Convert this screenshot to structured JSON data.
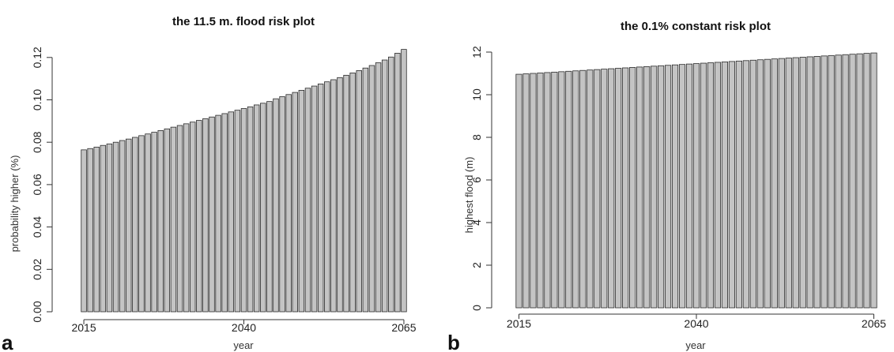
{
  "chart_data": [
    {
      "type": "bar",
      "panel": "a",
      "title": "the 11.5 m. flood risk plot",
      "xlabel": "year",
      "ylabel": "probability higher (%)",
      "x_start": 2015,
      "x_end": 2065,
      "x_ticks": [
        "2015",
        "2040",
        "2065"
      ],
      "y_ticks": [
        "0.00",
        "0.02",
        "0.04",
        "0.06",
        "0.08",
        "0.10",
        "0.12"
      ],
      "ylim": [
        0,
        0.127
      ],
      "grid": false,
      "values": [
        0.0764,
        0.077,
        0.0777,
        0.0785,
        0.0792,
        0.08,
        0.0808,
        0.0815,
        0.0823,
        0.0831,
        0.0839,
        0.0847,
        0.0855,
        0.0863,
        0.0871,
        0.0879,
        0.0887,
        0.0895,
        0.0903,
        0.0911,
        0.0919,
        0.0927,
        0.0935,
        0.0943,
        0.0951,
        0.0959,
        0.0967,
        0.0976,
        0.0984,
        0.0992,
        0.1005,
        0.1015,
        0.1025,
        0.1035,
        0.1045,
        0.1055,
        0.1065,
        0.1075,
        0.1085,
        0.1095,
        0.1105,
        0.1116,
        0.1127,
        0.1138,
        0.115,
        0.1162,
        0.1175,
        0.1188,
        0.1202,
        0.122,
        0.1238
      ]
    },
    {
      "type": "bar",
      "panel": "b",
      "title": "the 0.1% constant risk plot",
      "xlabel": "year",
      "ylabel": "highest flood (m)",
      "x_start": 2015,
      "x_end": 2065,
      "x_ticks": [
        "2015",
        "2040",
        "2065"
      ],
      "y_ticks": [
        "0",
        "2",
        "4",
        "6",
        "8",
        "10",
        "12"
      ],
      "ylim": [
        0,
        12
      ],
      "grid": false,
      "values": [
        10.96,
        10.98,
        11.0,
        11.02,
        11.04,
        11.06,
        11.08,
        11.1,
        11.12,
        11.14,
        11.16,
        11.18,
        11.2,
        11.22,
        11.24,
        11.26,
        11.28,
        11.3,
        11.32,
        11.34,
        11.36,
        11.38,
        11.4,
        11.42,
        11.44,
        11.46,
        11.48,
        11.5,
        11.52,
        11.54,
        11.56,
        11.58,
        11.6,
        11.62,
        11.64,
        11.66,
        11.68,
        11.7,
        11.72,
        11.74,
        11.76,
        11.78,
        11.8,
        11.82,
        11.84,
        11.86,
        11.88,
        11.9,
        11.92,
        11.94,
        11.96
      ]
    }
  ]
}
